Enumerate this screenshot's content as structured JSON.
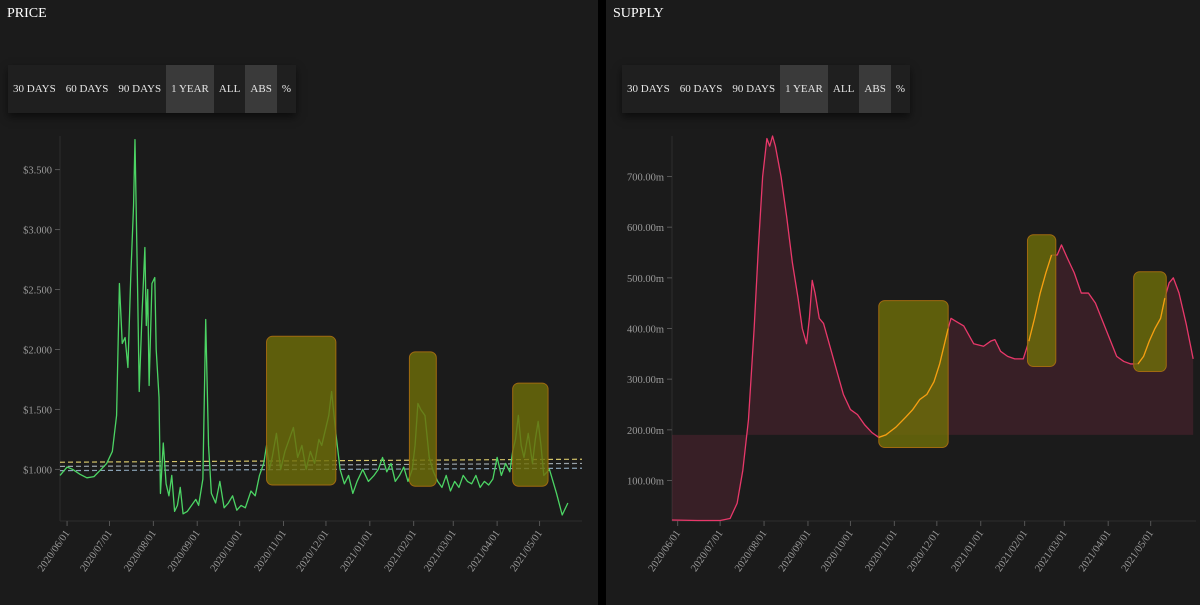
{
  "price_panel": {
    "title": "PRICE",
    "buttons": [
      "30 DAYS",
      "60 DAYS",
      "90 DAYS",
      "1 YEAR",
      "ALL"
    ],
    "active": "1 YEAR",
    "mode_buttons": [
      "ABS",
      "%"
    ],
    "mode_active": "ABS"
  },
  "supply_panel": {
    "title": "SUPPLY",
    "buttons": [
      "30 DAYS",
      "60 DAYS",
      "90 DAYS",
      "1 YEAR",
      "ALL"
    ],
    "active": "1 YEAR",
    "mode_buttons": [
      "ABS",
      "%"
    ],
    "mode_active": "ABS"
  },
  "colors": {
    "price_line": "#4cd464",
    "supply_line": "#e8386a",
    "supply_highlight_line": "#f5a010",
    "highlight_box": "#6e6e0a",
    "background": "#1b1b1b"
  },
  "chart_data": [
    {
      "type": "line",
      "title": "PRICE",
      "xlabel": "",
      "ylabel": "",
      "x_ticks": [
        "2020/06/01",
        "2020/07/01",
        "2020/08/01",
        "2020/09/01",
        "2020/10/01",
        "2020/11/01",
        "2020/12/01",
        "2021/01/01",
        "2021/02/01",
        "2021/03/01",
        "2021/04/01",
        "2021/05/01"
      ],
      "y_ticks": [
        "$1.000",
        "$1.500",
        "$2.000",
        "$2.500",
        "$3.000",
        "$3.500"
      ],
      "ylim": [
        0.57,
        3.78
      ],
      "xlim": [
        "2020-05-27",
        "2021-05-31"
      ],
      "grid": false,
      "series": [
        {
          "color": "#4cd464",
          "points": [
            [
              "2020-05-27",
              0.95
            ],
            [
              "2020-06-01",
              1.02
            ],
            [
              "2020-06-05",
              1.0
            ],
            [
              "2020-06-10",
              0.96
            ],
            [
              "2020-06-15",
              0.93
            ],
            [
              "2020-06-20",
              0.94
            ],
            [
              "2020-06-25",
              1.0
            ],
            [
              "2020-06-29",
              1.05
            ],
            [
              "2020-07-03",
              1.15
            ],
            [
              "2020-07-06",
              1.45
            ],
            [
              "2020-07-08",
              2.55
            ],
            [
              "2020-07-10",
              2.05
            ],
            [
              "2020-07-12",
              2.1
            ],
            [
              "2020-07-14",
              1.85
            ],
            [
              "2020-07-16",
              2.6
            ],
            [
              "2020-07-18",
              3.2
            ],
            [
              "2020-07-19",
              3.75
            ],
            [
              "2020-07-21",
              2.4
            ],
            [
              "2020-07-22",
              1.65
            ],
            [
              "2020-07-24",
              2.3
            ],
            [
              "2020-07-26",
              2.85
            ],
            [
              "2020-07-27",
              2.2
            ],
            [
              "2020-07-28",
              2.5
            ],
            [
              "2020-07-29",
              1.7
            ],
            [
              "2020-07-31",
              2.55
            ],
            [
              "2020-08-02",
              2.6
            ],
            [
              "2020-08-03",
              2.0
            ],
            [
              "2020-08-05",
              1.6
            ],
            [
              "2020-08-06",
              0.8
            ],
            [
              "2020-08-08",
              1.22
            ],
            [
              "2020-08-10",
              0.88
            ],
            [
              "2020-08-12",
              0.78
            ],
            [
              "2020-08-14",
              0.95
            ],
            [
              "2020-08-16",
              0.65
            ],
            [
              "2020-08-18",
              0.7
            ],
            [
              "2020-08-20",
              0.85
            ],
            [
              "2020-08-22",
              0.63
            ],
            [
              "2020-08-25",
              0.65
            ],
            [
              "2020-08-28",
              0.7
            ],
            [
              "2020-08-31",
              0.75
            ],
            [
              "2020-09-02",
              0.7
            ],
            [
              "2020-09-05",
              0.92
            ],
            [
              "2020-09-07",
              2.25
            ],
            [
              "2020-09-09",
              1.2
            ],
            [
              "2020-09-11",
              0.8
            ],
            [
              "2020-09-14",
              0.72
            ],
            [
              "2020-09-17",
              0.9
            ],
            [
              "2020-09-20",
              0.68
            ],
            [
              "2020-09-23",
              0.72
            ],
            [
              "2020-09-26",
              0.78
            ],
            [
              "2020-09-29",
              0.66
            ],
            [
              "2020-10-02",
              0.7
            ],
            [
              "2020-10-05",
              0.68
            ],
            [
              "2020-10-09",
              0.82
            ],
            [
              "2020-10-12",
              0.78
            ],
            [
              "2020-10-15",
              0.95
            ],
            [
              "2020-10-18",
              1.05
            ],
            [
              "2020-10-20",
              1.2
            ],
            [
              "2020-10-22",
              1.0
            ],
            [
              "2020-10-24",
              1.1
            ],
            [
              "2020-10-27",
              1.3
            ],
            [
              "2020-10-30",
              1.0
            ],
            [
              "2020-11-02",
              1.15
            ],
            [
              "2020-11-05",
              1.25
            ],
            [
              "2020-11-08",
              1.35
            ],
            [
              "2020-11-11",
              1.1
            ],
            [
              "2020-11-14",
              1.2
            ],
            [
              "2020-11-17",
              1.0
            ],
            [
              "2020-11-20",
              1.15
            ],
            [
              "2020-11-23",
              1.05
            ],
            [
              "2020-11-26",
              1.25
            ],
            [
              "2020-11-28",
              1.2
            ],
            [
              "2020-12-01",
              1.35
            ],
            [
              "2020-12-03",
              1.45
            ],
            [
              "2020-12-05",
              1.65
            ],
            [
              "2020-12-08",
              1.3
            ],
            [
              "2020-12-11",
              1.0
            ],
            [
              "2020-12-14",
              0.88
            ],
            [
              "2020-12-17",
              0.95
            ],
            [
              "2020-12-20",
              0.8
            ],
            [
              "2020-12-23",
              0.9
            ],
            [
              "2020-12-27",
              1.0
            ],
            [
              "2020-12-31",
              0.9
            ],
            [
              "2021-01-04",
              0.95
            ],
            [
              "2021-01-07",
              1.0
            ],
            [
              "2021-01-10",
              1.1
            ],
            [
              "2021-01-13",
              0.98
            ],
            [
              "2021-01-16",
              1.05
            ],
            [
              "2021-01-19",
              0.9
            ],
            [
              "2021-01-22",
              0.95
            ],
            [
              "2021-01-25",
              1.02
            ],
            [
              "2021-01-28",
              0.9
            ],
            [
              "2021-01-31",
              1.0
            ],
            [
              "2021-02-02",
              1.2
            ],
            [
              "2021-02-04",
              1.55
            ],
            [
              "2021-02-06",
              1.5
            ],
            [
              "2021-02-09",
              1.45
            ],
            [
              "2021-02-12",
              1.1
            ],
            [
              "2021-02-15",
              0.98
            ],
            [
              "2021-02-18",
              0.9
            ],
            [
              "2021-02-21",
              0.85
            ],
            [
              "2021-02-24",
              0.95
            ],
            [
              "2021-02-27",
              0.82
            ],
            [
              "2021-03-02",
              0.9
            ],
            [
              "2021-03-05",
              0.85
            ],
            [
              "2021-03-08",
              0.95
            ],
            [
              "2021-03-11",
              0.9
            ],
            [
              "2021-03-14",
              0.88
            ],
            [
              "2021-03-17",
              0.95
            ],
            [
              "2021-03-20",
              0.85
            ],
            [
              "2021-03-23",
              0.9
            ],
            [
              "2021-03-26",
              0.87
            ],
            [
              "2021-03-29",
              0.92
            ],
            [
              "2021-04-01",
              1.1
            ],
            [
              "2021-04-04",
              0.95
            ],
            [
              "2021-04-07",
              1.05
            ],
            [
              "2021-04-10",
              0.98
            ],
            [
              "2021-04-12",
              1.15
            ],
            [
              "2021-04-14",
              1.25
            ],
            [
              "2021-04-16",
              1.45
            ],
            [
              "2021-04-18",
              1.2
            ],
            [
              "2021-04-20",
              1.1
            ],
            [
              "2021-04-23",
              1.3
            ],
            [
              "2021-04-26",
              1.05
            ],
            [
              "2021-04-28",
              1.25
            ],
            [
              "2021-04-30",
              1.4
            ],
            [
              "2021-05-02",
              1.2
            ],
            [
              "2021-05-04",
              0.95
            ],
            [
              "2021-05-08",
              1.0
            ],
            [
              "2021-05-13",
              0.8
            ],
            [
              "2021-05-17",
              0.62
            ],
            [
              "2021-05-21",
              0.72
            ]
          ]
        }
      ],
      "reference_lines": [
        {
          "y_start": 1.06,
          "y_end": 1.085,
          "color": "#d6c66a"
        },
        {
          "y_start": 1.025,
          "y_end": 1.05,
          "color": "#9aa3aa"
        },
        {
          "y_start": 0.99,
          "y_end": 1.01,
          "color": "#8aa2b6"
        }
      ],
      "highlights": [
        {
          "x_start": "2020-10-20",
          "x_end": "2020-12-08",
          "y_start": 0.87,
          "y_end": 2.11
        },
        {
          "x_start": "2021-01-29",
          "x_end": "2021-02-17",
          "y_start": 0.86,
          "y_end": 1.98
        },
        {
          "x_start": "2021-04-12",
          "x_end": "2021-05-07",
          "y_start": 0.86,
          "y_end": 1.72
        }
      ]
    },
    {
      "type": "area",
      "title": "SUPPLY",
      "xlabel": "",
      "ylabel": "",
      "x_ticks": [
        "2020/06/01",
        "2020/07/01",
        "2020/08/01",
        "2020/09/01",
        "2020/10/01",
        "2020/11/01",
        "2020/12/01",
        "2021/01/01",
        "2021/02/01",
        "2021/03/01",
        "2021/04/01",
        "2021/05/01"
      ],
      "y_ticks": [
        "100.00m",
        "200.00m",
        "300.00m",
        "400.00m",
        "500.00m",
        "600.00m",
        "700.00m"
      ],
      "ylim": [
        20,
        780
      ],
      "xlim": [
        "2020-05-28",
        "2021-06-02"
      ],
      "grid": false,
      "series": [
        {
          "color": "#e8386a",
          "points": [
            [
              "2020-05-28",
              22
            ],
            [
              "2020-06-15",
              21
            ],
            [
              "2020-07-01",
              21
            ],
            [
              "2020-07-08",
              25
            ],
            [
              "2020-07-13",
              55
            ],
            [
              "2020-07-17",
              120
            ],
            [
              "2020-07-21",
              220
            ],
            [
              "2020-07-25",
              400
            ],
            [
              "2020-07-28",
              560
            ],
            [
              "2020-07-31",
              700
            ],
            [
              "2020-08-03",
              775
            ],
            [
              "2020-08-05",
              760
            ],
            [
              "2020-08-07",
              780
            ],
            [
              "2020-08-09",
              760
            ],
            [
              "2020-08-13",
              700
            ],
            [
              "2020-08-17",
              620
            ],
            [
              "2020-08-21",
              530
            ],
            [
              "2020-08-25",
              460
            ],
            [
              "2020-08-28",
              400
            ],
            [
              "2020-08-31",
              370
            ],
            [
              "2020-09-02",
              420
            ],
            [
              "2020-09-04",
              495
            ],
            [
              "2020-09-06",
              470
            ],
            [
              "2020-09-09",
              420
            ],
            [
              "2020-09-12",
              410
            ],
            [
              "2020-09-16",
              370
            ],
            [
              "2020-09-21",
              320
            ],
            [
              "2020-09-26",
              270
            ],
            [
              "2020-10-01",
              240
            ],
            [
              "2020-10-06",
              230
            ],
            [
              "2020-10-11",
              210
            ],
            [
              "2020-10-16",
              195
            ],
            [
              "2020-10-21",
              185
            ],
            [
              "2020-10-26",
              190
            ],
            [
              "2020-11-02",
              205
            ],
            [
              "2020-11-09",
              225
            ],
            [
              "2020-11-14",
              240
            ],
            [
              "2020-11-19",
              260
            ],
            [
              "2020-11-24",
              270
            ],
            [
              "2020-11-29",
              295
            ],
            [
              "2020-12-03",
              330
            ],
            [
              "2020-12-06",
              365
            ],
            [
              "2020-12-09",
              400
            ],
            [
              "2020-12-11",
              420
            ],
            [
              "2020-12-14",
              415
            ],
            [
              "2020-12-20",
              405
            ],
            [
              "2020-12-27",
              370
            ],
            [
              "2021-01-03",
              365
            ],
            [
              "2021-01-08",
              375
            ],
            [
              "2021-01-11",
              378
            ],
            [
              "2021-01-15",
              355
            ],
            [
              "2021-01-20",
              345
            ],
            [
              "2021-01-25",
              340
            ],
            [
              "2021-01-31",
              340
            ],
            [
              "2021-02-04",
              375
            ],
            [
              "2021-02-08",
              420
            ],
            [
              "2021-02-12",
              470
            ],
            [
              "2021-02-16",
              510
            ],
            [
              "2021-02-20",
              545
            ],
            [
              "2021-02-24",
              545
            ],
            [
              "2021-02-27",
              565
            ],
            [
              "2021-03-03",
              540
            ],
            [
              "2021-03-08",
              510
            ],
            [
              "2021-03-13",
              470
            ],
            [
              "2021-03-18",
              470
            ],
            [
              "2021-03-23",
              450
            ],
            [
              "2021-03-28",
              415
            ],
            [
              "2021-04-02",
              380
            ],
            [
              "2021-04-07",
              345
            ],
            [
              "2021-04-12",
              335
            ],
            [
              "2021-04-17",
              330
            ],
            [
              "2021-04-22",
              330
            ],
            [
              "2021-04-26",
              345
            ],
            [
              "2021-04-30",
              375
            ],
            [
              "2021-05-04",
              400
            ],
            [
              "2021-05-08",
              420
            ],
            [
              "2021-05-11",
              460
            ],
            [
              "2021-05-14",
              490
            ],
            [
              "2021-05-17",
              500
            ],
            [
              "2021-05-21",
              470
            ],
            [
              "2021-05-26",
              410
            ],
            [
              "2021-05-31",
              340
            ]
          ]
        }
      ],
      "highlights": [
        {
          "x_start": "2020-10-21",
          "x_end": "2020-12-09",
          "y_start": 165,
          "y_end": 455
        },
        {
          "x_start": "2021-02-03",
          "x_end": "2021-02-23",
          "y_start": 325,
          "y_end": 585
        },
        {
          "x_start": "2021-04-19",
          "x_end": "2021-05-12",
          "y_start": 315,
          "y_end": 512
        }
      ]
    }
  ]
}
